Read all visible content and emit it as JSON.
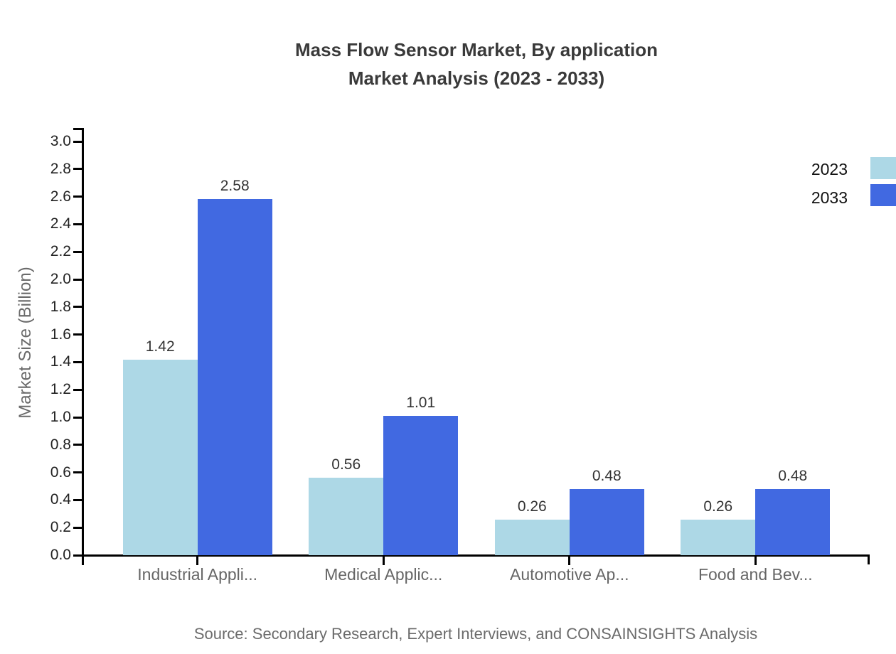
{
  "title": {
    "line1": "Mass Flow Sensor Market, By application",
    "line2": "Market Analysis (2023 - 2033)"
  },
  "source": "Source: Secondary Research, Expert Interviews, and CONSAINSIGHTS Analysis",
  "legend": [
    {
      "label": "2023",
      "color": "#ADD8E6"
    },
    {
      "label": "2033",
      "color": "#4169E1"
    }
  ],
  "colors": {
    "series_2023": "#ADD8E6",
    "series_2033": "#4169E1",
    "axis": "#000000",
    "title_text": "#3a3a3a",
    "muted_text": "#6b6b6b"
  },
  "chart_data": {
    "type": "bar",
    "title": "Mass Flow Sensor Market, By application Market Analysis (2023 - 2033)",
    "categories": [
      "Industrial Appli...",
      "Medical Applic...",
      "Automotive Ap...",
      "Food and Bev..."
    ],
    "series": [
      {
        "name": "2023",
        "color": "#ADD8E6",
        "values": [
          1.42,
          0.56,
          0.26,
          0.26
        ]
      },
      {
        "name": "2033",
        "color": "#4169E1",
        "values": [
          2.58,
          1.01,
          0.48,
          0.48
        ]
      }
    ],
    "xlabel": "",
    "ylabel": "Market Size (Billion)",
    "ylim": [
      0.0,
      3.0
    ],
    "ytick_step": 0.2,
    "yticks": [
      "0.0",
      "0.2",
      "0.4",
      "0.6",
      "0.8",
      "1.0",
      "1.2",
      "1.4",
      "1.6",
      "1.8",
      "2.0",
      "2.2",
      "2.4",
      "2.6",
      "2.8",
      "3.0"
    ],
    "grid": false,
    "legend_position": "top-right",
    "value_labels": true
  }
}
